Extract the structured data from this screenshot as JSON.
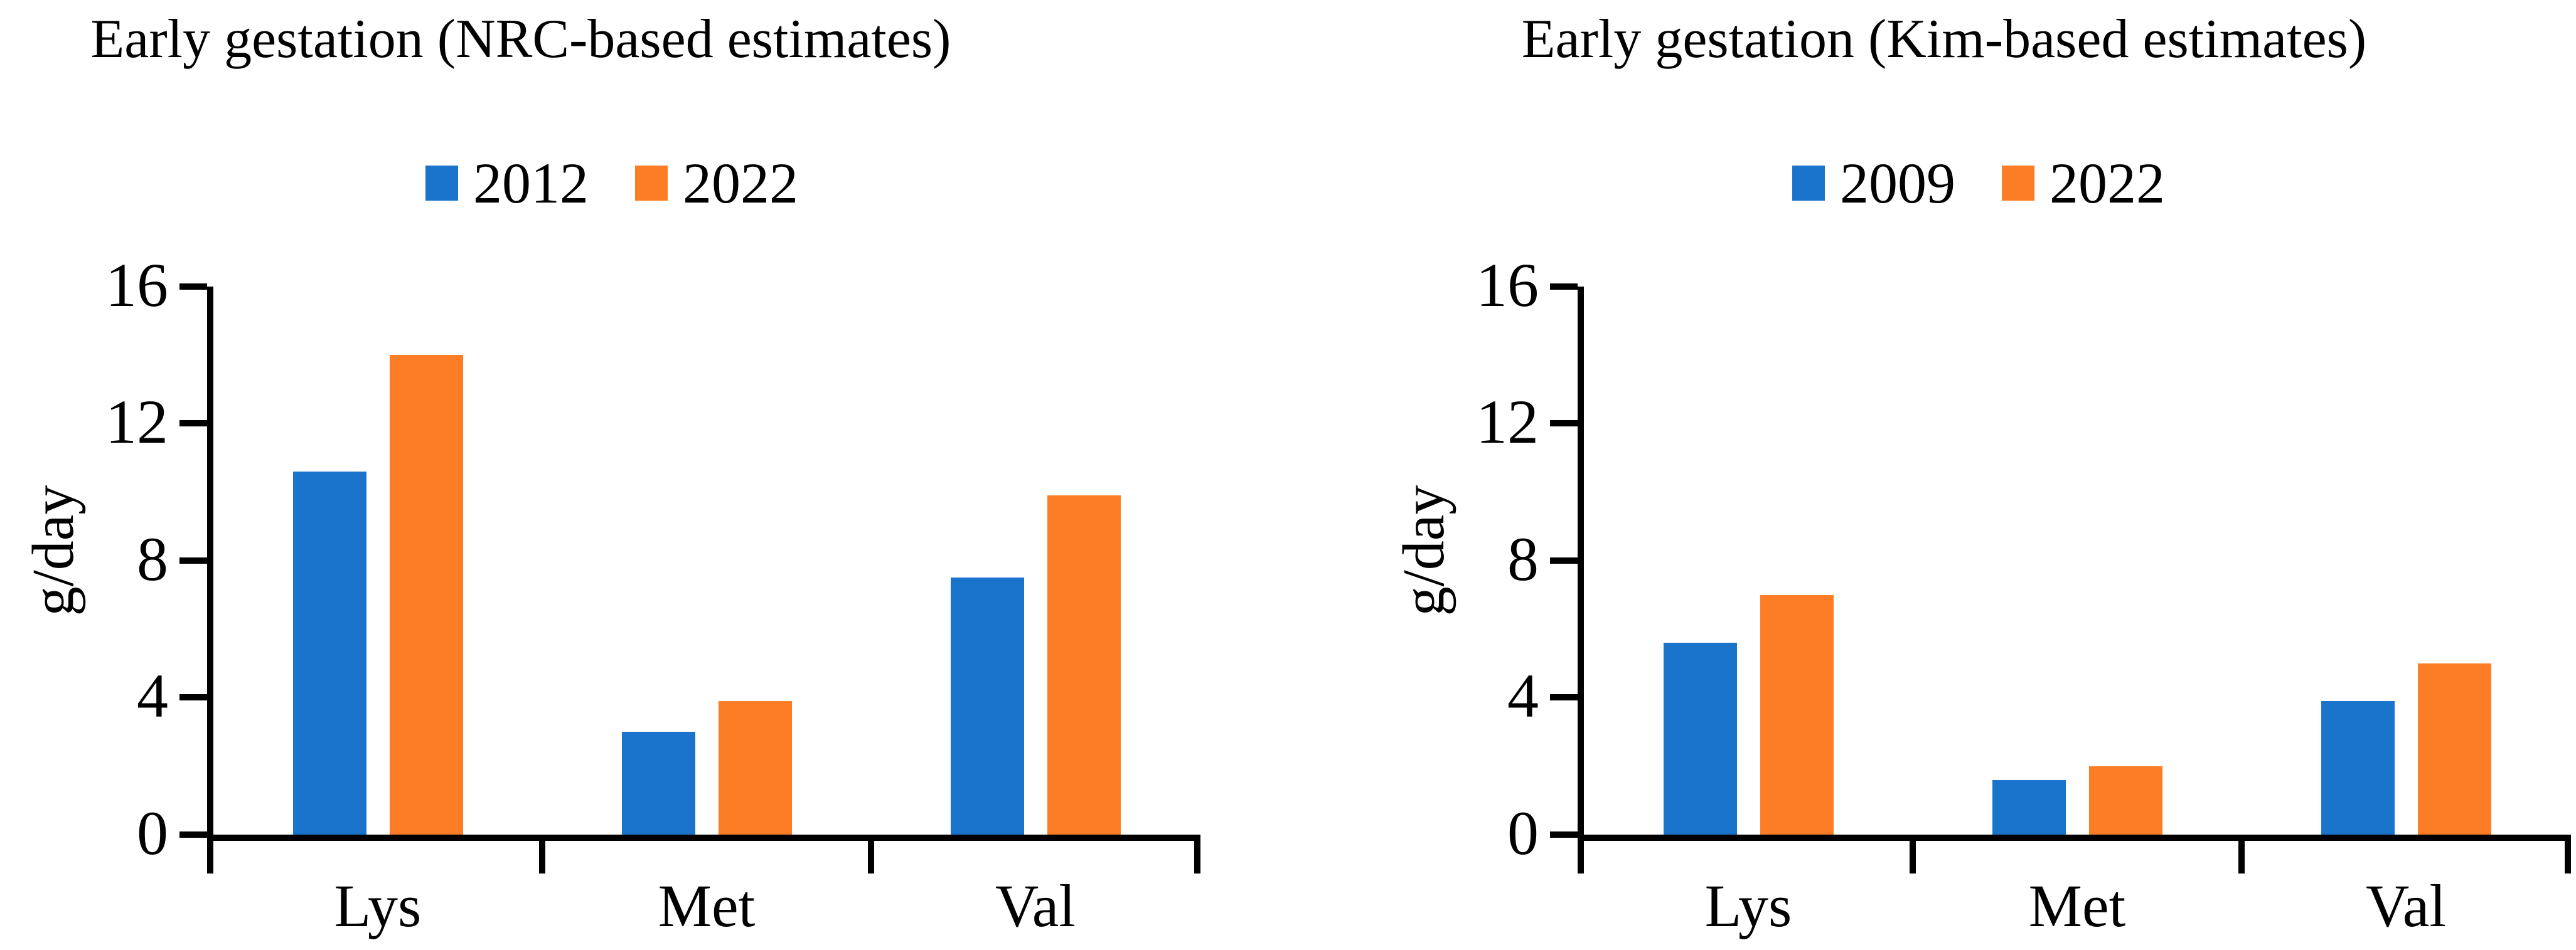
{
  "chart_data": [
    {
      "type": "bar",
      "title": "Early gestation (NRC-based estimates)",
      "ylabel": "g/day",
      "xlabel": "",
      "ylim": [
        0,
        16
      ],
      "ytick_step": 4,
      "yticks": [
        "0",
        "4",
        "8",
        "12",
        "16"
      ],
      "grid": false,
      "legend_position": "top",
      "categories": [
        "Lys",
        "Met",
        "Val"
      ],
      "series": [
        {
          "name": "2012",
          "color": "#1B74CC",
          "values": [
            10.6,
            3.0,
            7.5
          ]
        },
        {
          "name": "2022",
          "color": "#FC7D26",
          "values": [
            14.0,
            3.9,
            9.9
          ]
        }
      ]
    },
    {
      "type": "bar",
      "title": "Early gestation (Kim-based estimates)",
      "ylabel": "g/day",
      "xlabel": "",
      "ylim": [
        0,
        16
      ],
      "ytick_step": 4,
      "yticks": [
        "0",
        "4",
        "8",
        "12",
        "16"
      ],
      "grid": false,
      "legend_position": "top",
      "categories": [
        "Lys",
        "Met",
        "Val"
      ],
      "series": [
        {
          "name": "2009",
          "color": "#1B74CC",
          "values": [
            5.6,
            1.6,
            3.9
          ]
        },
        {
          "name": "2022",
          "color": "#FC7D26",
          "values": [
            7.0,
            2.0,
            5.0
          ]
        }
      ]
    }
  ],
  "colors": {
    "series_blue": "#1B74CC",
    "series_orange": "#FC7D26",
    "axis": "#000000",
    "background": "#FFFFFF"
  }
}
